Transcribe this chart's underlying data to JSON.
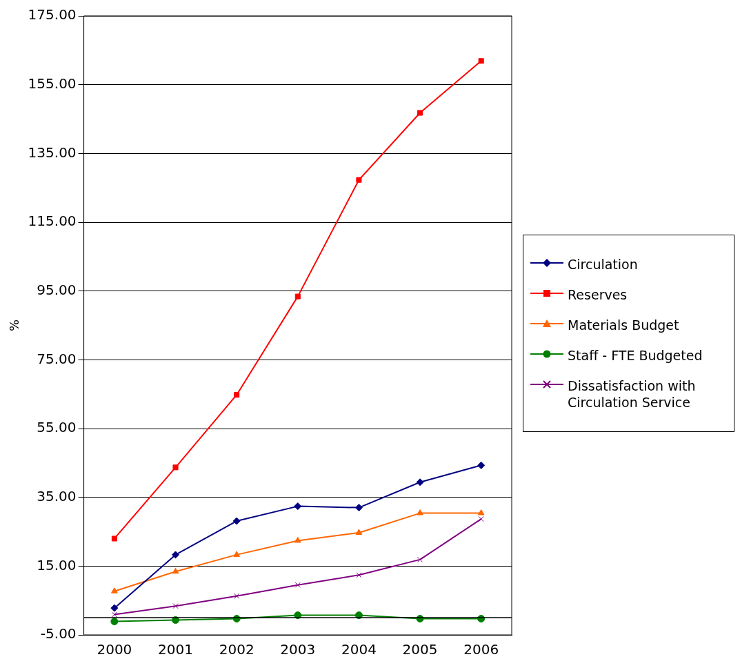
{
  "chart_data": {
    "type": "line",
    "ylabel": "%",
    "categories": [
      "2000",
      "2001",
      "2002",
      "2003",
      "2004",
      "2005",
      "2006"
    ],
    "series": [
      {
        "name": "Circulation",
        "color": "#000080",
        "marker": "diamond",
        "values": [
          2.8,
          18.3,
          28.1,
          32.4,
          32.0,
          39.4,
          44.3
        ]
      },
      {
        "name": "Reserves",
        "color": "#ff0000",
        "marker": "square",
        "values": [
          23.0,
          43.7,
          64.8,
          93.4,
          127.3,
          146.8,
          161.9
        ]
      },
      {
        "name": "Materials Budget",
        "color": "#ff6600",
        "marker": "triangle",
        "values": [
          7.7,
          13.4,
          18.3,
          22.4,
          24.7,
          30.4,
          30.4
        ]
      },
      {
        "name": "Staff - FTE Budgeted",
        "color": "#008000",
        "marker": "circle",
        "values": [
          -1.1,
          -0.7,
          -0.3,
          0.7,
          0.7,
          -0.3,
          -0.3
        ]
      },
      {
        "name": "Dissatisfaction with Circulation Service",
        "color": "#800080",
        "marker": "cross",
        "values": [
          0.9,
          3.4,
          6.3,
          9.5,
          12.4,
          16.9,
          28.7
        ]
      }
    ],
    "ylim": [
      -5,
      175
    ],
    "yticks": [
      {
        "value": -5,
        "label": "-5.00"
      },
      {
        "value": 15,
        "label": "15.00"
      },
      {
        "value": 35,
        "label": "35.00"
      },
      {
        "value": 55,
        "label": "55.00"
      },
      {
        "value": 75,
        "label": "75.00"
      },
      {
        "value": 95,
        "label": "95.00"
      },
      {
        "value": 115,
        "label": "115.00"
      },
      {
        "value": 135,
        "label": "135.00"
      },
      {
        "value": 155,
        "label": "155.00"
      },
      {
        "value": 175,
        "label": "175.00"
      }
    ],
    "ref_lines": [
      {
        "axis": "y",
        "value": 0,
        "color": "#000000"
      }
    ],
    "grid": "y",
    "legend": "right",
    "line_style": "solid"
  }
}
